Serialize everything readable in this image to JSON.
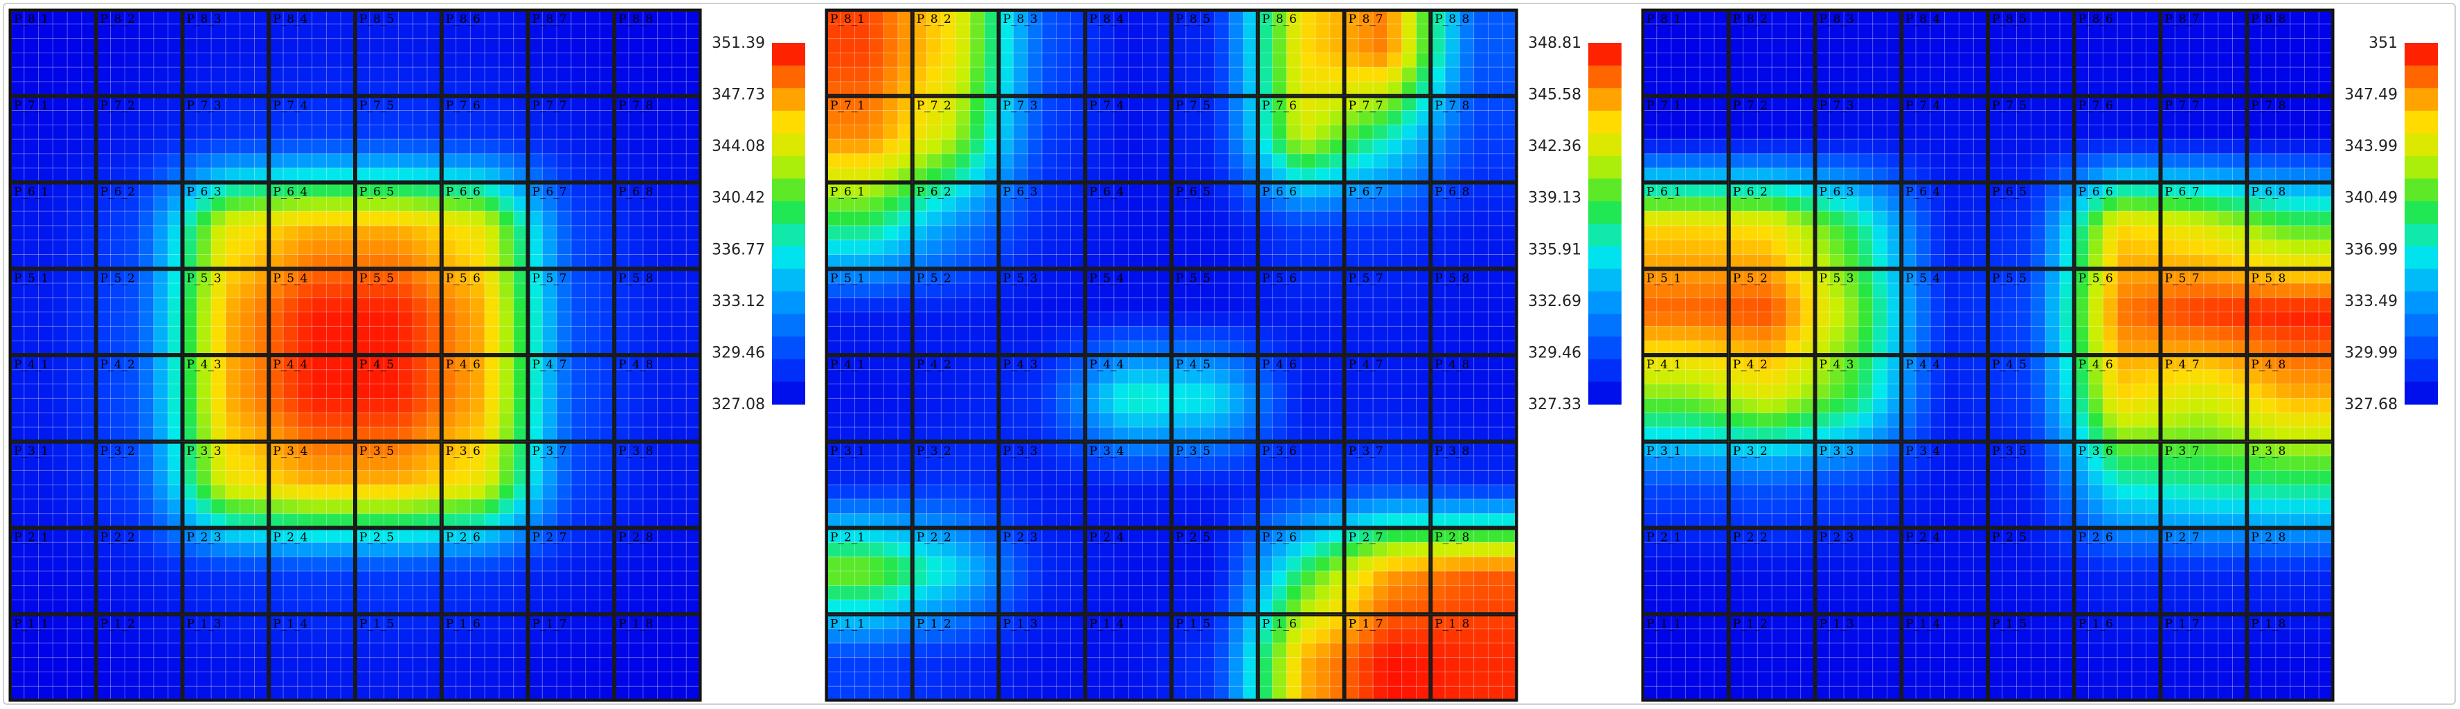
{
  "chart_data": [
    {
      "type": "heatmap",
      "panel": 1,
      "title": "",
      "rows": [
        "P_8",
        "P_7",
        "P_6",
        "P_5",
        "P_4",
        "P_3",
        "P_2",
        "P_1"
      ],
      "cols": [
        1,
        2,
        3,
        4,
        5,
        6,
        7,
        8
      ],
      "cell_labels": [
        [
          "P_8_1",
          "P_8_2",
          "P_8_3",
          "P_8_4",
          "P_8_5",
          "P_8_6",
          "P_8_7",
          "P_8_8"
        ],
        [
          "P_7_1",
          "P_7_2",
          "P_7_3",
          "P_7_4",
          "P_7_5",
          "P_7_6",
          "P_7_7",
          "P_7_8"
        ],
        [
          "P_6_1",
          "P_6_2",
          "P_6_3",
          "P_6_4",
          "P_6_5",
          "P_6_6",
          "P_6_7",
          "P_6_8"
        ],
        [
          "P_5_1",
          "P_5_2",
          "P_5_3",
          "P_5_4",
          "P_5_5",
          "P_5_6",
          "P_5_7",
          "P_5_8"
        ],
        [
          "P_4_1",
          "P_4_2",
          "P_4_3",
          "P_4_4",
          "P_4_5",
          "P_4_6",
          "P_4_7",
          "P_4_8"
        ],
        [
          "P_3_1",
          "P_3_2",
          "P_3_3",
          "P_3_4",
          "P_3_5",
          "P_3_6",
          "P_3_7",
          "P_3_8"
        ],
        [
          "P_2_1",
          "P_2_2",
          "P_2_3",
          "P_2_4",
          "P_2_5",
          "P_2_6",
          "P_2_7",
          "P_2_8"
        ],
        [
          "P_1_1",
          "P_1_2",
          "P_1_3",
          "P_1_4",
          "P_1_5",
          "P_1_6",
          "P_1_7",
          "P_1_8"
        ]
      ],
      "values": [
        [
          327.2,
          327.5,
          328.0,
          328.3,
          328.3,
          328.0,
          327.5,
          327.2
        ],
        [
          327.6,
          328.4,
          329.5,
          330.0,
          330.0,
          329.5,
          328.4,
          327.6
        ],
        [
          328.2,
          330.5,
          345.0,
          347.2,
          347.2,
          345.0,
          330.5,
          328.2
        ],
        [
          328.4,
          331.0,
          347.2,
          350.8,
          350.8,
          347.2,
          331.0,
          328.4
        ],
        [
          328.4,
          331.0,
          347.2,
          350.8,
          350.8,
          347.2,
          331.0,
          328.4
        ],
        [
          328.2,
          330.5,
          345.0,
          347.2,
          347.2,
          345.0,
          330.5,
          328.2
        ],
        [
          327.6,
          328.4,
          329.5,
          330.0,
          330.0,
          329.5,
          328.4,
          327.6
        ],
        [
          327.2,
          327.5,
          328.0,
          328.3,
          328.3,
          328.0,
          327.5,
          327.2
        ]
      ],
      "colorbar_ticks": [
        "351.39",
        "347.73",
        "344.08",
        "340.42",
        "336.77",
        "333.12",
        "329.46",
        "327.08"
      ],
      "vmin": 327.08,
      "vmax": 351.39
    },
    {
      "type": "heatmap",
      "panel": 2,
      "title": "",
      "rows": [
        "P_8",
        "P_7",
        "P_6",
        "P_5",
        "P_4",
        "P_3",
        "P_2",
        "P_1"
      ],
      "cols": [
        1,
        2,
        3,
        4,
        5,
        6,
        7,
        8
      ],
      "cell_labels": [
        [
          "P_8_1",
          "P_8_2",
          "P_8_3",
          "P_8_4",
          "P_8_5",
          "P_8_6",
          "P_8_7",
          "P_8_8"
        ],
        [
          "P_7_1",
          "P_7_2",
          "P_7_3",
          "P_7_4",
          "P_7_5",
          "P_7_6",
          "P_7_7",
          "P_7_8"
        ],
        [
          "P_6_1",
          "P_6_2",
          "P_6_3",
          "P_6_4",
          "P_6_5",
          "P_6_6",
          "P_6_7",
          "P_6_8"
        ],
        [
          "P_5_1",
          "P_5_2",
          "P_5_3",
          "P_5_4",
          "P_5_5",
          "P_5_6",
          "P_5_7",
          "P_5_8"
        ],
        [
          "P_4_1",
          "P_4_2",
          "P_4_3",
          "P_4_4",
          "P_4_5",
          "P_4_6",
          "P_4_7",
          "P_4_8"
        ],
        [
          "P_3_1",
          "P_3_2",
          "P_3_3",
          "P_3_4",
          "P_3_5",
          "P_3_6",
          "P_3_7",
          "P_3_8"
        ],
        [
          "P_2_1",
          "P_2_2",
          "P_2_3",
          "P_2_4",
          "P_2_5",
          "P_2_6",
          "P_2_7",
          "P_2_8"
        ],
        [
          "P_1_1",
          "P_1_2",
          "P_1_3",
          "P_1_4",
          "P_1_5",
          "P_1_6",
          "P_1_7",
          "P_1_8"
        ]
      ],
      "values": [
        [
          347.5,
          343.5,
          331.0,
          328.0,
          329.0,
          344.0,
          346.5,
          331.0
        ],
        [
          346.0,
          341.5,
          330.0,
          328.0,
          329.0,
          342.5,
          337.0,
          330.0
        ],
        [
          338.5,
          333.0,
          329.0,
          328.0,
          328.0,
          330.0,
          329.5,
          328.5
        ],
        [
          328.5,
          328.5,
          328.0,
          328.0,
          328.0,
          328.5,
          328.5,
          328.0
        ],
        [
          328.0,
          328.5,
          329.5,
          337.5,
          336.5,
          328.5,
          328.5,
          328.0
        ],
        [
          329.0,
          329.5,
          328.5,
          328.5,
          328.5,
          329.0,
          330.0,
          329.0
        ],
        [
          341.0,
          336.0,
          329.0,
          328.0,
          328.0,
          338.5,
          345.5,
          347.0
        ],
        [
          330.0,
          329.0,
          328.0,
          328.0,
          329.5,
          345.0,
          348.5,
          348.0
        ]
      ],
      "colorbar_ticks": [
        "348.81",
        "345.58",
        "342.36",
        "339.13",
        "335.91",
        "332.69",
        "329.46",
        "327.33"
      ],
      "vmin": 327.33,
      "vmax": 348.81
    },
    {
      "type": "heatmap",
      "panel": 3,
      "title": "",
      "rows": [
        "P_8",
        "P_7",
        "P_6",
        "P_5",
        "P_4",
        "P_3",
        "P_2",
        "P_1"
      ],
      "cols": [
        1,
        2,
        3,
        4,
        5,
        6,
        7,
        8
      ],
      "cell_labels": [
        [
          "P_8_1",
          "P_8_2",
          "P_8_3",
          "P_8_4",
          "P_8_5",
          "P_8_6",
          "P_8_7",
          "P_8_8"
        ],
        [
          "P_7_1",
          "P_7_2",
          "P_7_3",
          "P_7_4",
          "P_7_5",
          "P_7_6",
          "P_7_7",
          "P_7_8"
        ],
        [
          "P_6_1",
          "P_6_2",
          "P_6_3",
          "P_6_4",
          "P_6_5",
          "P_6_6",
          "P_6_7",
          "P_6_8"
        ],
        [
          "P_5_1",
          "P_5_2",
          "P_5_3",
          "P_5_4",
          "P_5_5",
          "P_5_6",
          "P_5_7",
          "P_5_8"
        ],
        [
          "P_4_1",
          "P_4_2",
          "P_4_3",
          "P_4_4",
          "P_4_5",
          "P_4_6",
          "P_4_7",
          "P_4_8"
        ],
        [
          "P_3_1",
          "P_3_2",
          "P_3_3",
          "P_3_4",
          "P_3_5",
          "P_3_6",
          "P_3_7",
          "P_3_8"
        ],
        [
          "P_2_1",
          "P_2_2",
          "P_2_3",
          "P_2_4",
          "P_2_5",
          "P_2_6",
          "P_2_7",
          "P_2_8"
        ],
        [
          "P_1_1",
          "P_1_2",
          "P_1_3",
          "P_1_4",
          "P_1_5",
          "P_1_6",
          "P_1_7",
          "P_1_8"
        ]
      ],
      "values": [
        [
          327.8,
          328.0,
          328.0,
          328.0,
          328.0,
          328.0,
          328.0,
          327.8
        ],
        [
          328.0,
          328.2,
          328.5,
          328.5,
          328.5,
          328.5,
          328.2,
          328.0
        ],
        [
          346.0,
          345.5,
          339.5,
          329.0,
          330.0,
          346.0,
          344.5,
          341.0
        ],
        [
          349.0,
          349.5,
          342.0,
          329.5,
          331.0,
          348.5,
          350.0,
          350.5
        ],
        [
          342.0,
          344.5,
          340.0,
          329.0,
          330.5,
          346.0,
          344.0,
          347.0
        ],
        [
          331.0,
          331.5,
          330.5,
          328.5,
          329.0,
          338.0,
          339.0,
          339.5
        ],
        [
          328.2,
          328.5,
          328.5,
          328.3,
          328.5,
          329.5,
          329.5,
          329.5
        ],
        [
          327.8,
          328.0,
          328.0,
          328.0,
          328.0,
          328.2,
          328.2,
          328.0
        ]
      ],
      "colorbar_ticks": [
        "351",
        "347.49",
        "343.99",
        "340.49",
        "336.99",
        "333.49",
        "329.99",
        "327.68"
      ],
      "vmin": 327.68,
      "vmax": 351
    }
  ]
}
